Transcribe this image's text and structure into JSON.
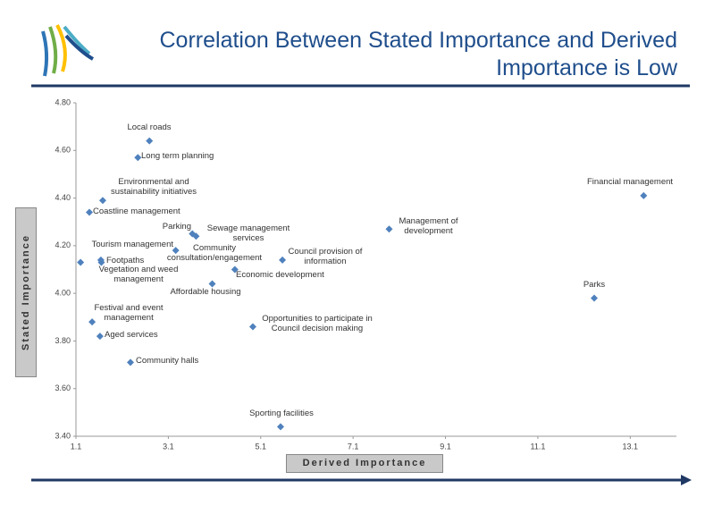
{
  "chart_data": {
    "type": "scatter",
    "title": "Correlation Between Stated Importance and Derived Importance is Low",
    "xlabel": "Derived Importance",
    "ylabel": "Stated Importance",
    "labels": [
      "Local roads",
      "Long term planning",
      "Environmental and sustainability initiatives",
      "Coastline management",
      "Financial management",
      "Management of development",
      "Parking",
      "Sewage management services",
      "Tourism management",
      "Community consultation/engagement",
      "Footpaths",
      "Vegetation and weed management",
      "Council provision of information",
      "Economic development",
      "Affordable housing",
      "Parks",
      "Festival and event management",
      "Opportunities to participate in Council decision making",
      "Aged services",
      "Community halls",
      "Sporting facilities"
    ],
    "x": [
      2.69,
      2.44,
      1.68,
      1.39,
      13.39,
      7.88,
      3.62,
      3.7,
      1.2,
      3.26,
      1.64,
      1.65,
      5.57,
      4.54,
      4.05,
      12.32,
      1.45,
      4.93,
      1.62,
      2.28,
      5.53
    ],
    "values": [
      4.64,
      4.57,
      4.39,
      4.34,
      4.41,
      4.27,
      4.25,
      4.24,
      4.13,
      4.18,
      4.14,
      4.13,
      4.14,
      4.1,
      4.04,
      3.98,
      3.88,
      3.86,
      3.82,
      3.71,
      3.44
    ],
    "color": "#4f81bd",
    "xlim": [
      1.1,
      14.1
    ],
    "xticks": [
      1.1,
      3.1,
      5.1,
      7.1,
      9.1,
      11.1,
      13.1
    ],
    "ylim": [
      3.4,
      4.8
    ],
    "yticks": [
      {
        "value": 3.4,
        "label": "3.40"
      },
      {
        "value": 3.6,
        "label": "3.60"
      },
      {
        "value": 3.8,
        "label": "3.80"
      },
      {
        "value": 4.0,
        "label": "4.00"
      },
      {
        "value": 4.2,
        "label": "4.20"
      },
      {
        "value": 4.4,
        "label": "4.40"
      },
      {
        "value": 4.6,
        "label": "4.60"
      },
      {
        "value": 4.8,
        "label": "4.80"
      }
    ]
  }
}
